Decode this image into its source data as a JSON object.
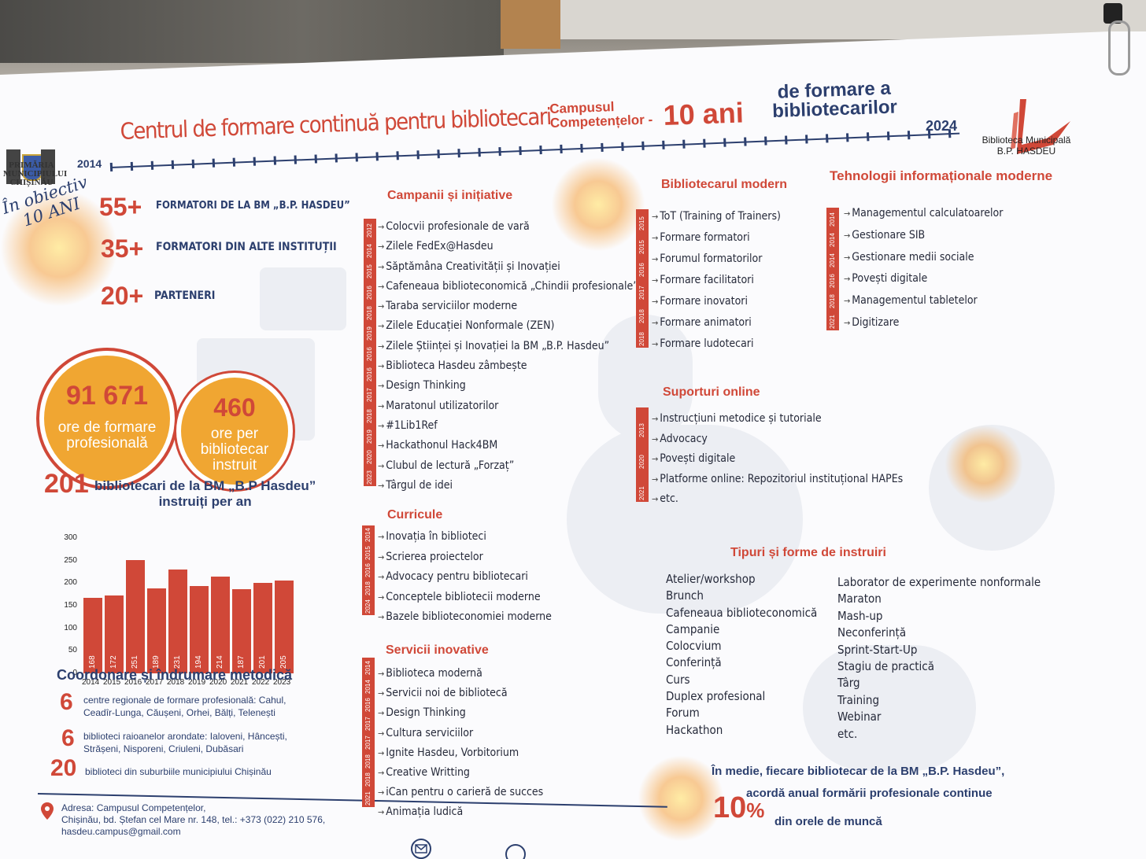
{
  "header": {
    "title": "Centrul de formare continuă pentru bibliotecari",
    "campus_line1": "Campusul",
    "campus_line2": "Competențelor -",
    "ten_years": "10 ani",
    "formare_line1": "de formare a",
    "formare_line2": "bibliotecarilor",
    "year_start": "2014",
    "year_end": "2024"
  },
  "primaria": {
    "line1": "PRIMĂRIA",
    "line2": "MUNICIPIULUI",
    "line3": "CHIȘINĂU"
  },
  "bm_logo": {
    "line1": "Biblioteca Municipală",
    "line2": "B.P. HASDEU"
  },
  "objective": {
    "line1": "În obiectiv",
    "line2": "10 ANI"
  },
  "stats": [
    {
      "value": "55+",
      "label": "FORMATORI DE LA BM „B.P. HASDEU”"
    },
    {
      "value": "35+",
      "label": "FORMATORI DIN ALTE INSTITUȚII"
    },
    {
      "value": "20+",
      "label": "PARTENERI"
    }
  ],
  "circles": {
    "hours": {
      "value": "91 671",
      "label1": "ore de formare",
      "label2": "profesională"
    },
    "per_librarian": {
      "value": "460",
      "label1": "ore per",
      "label2": "bibliotecar",
      "label3": "instruit"
    }
  },
  "trained": {
    "value": "201",
    "label1": "bibliotecari de la BM „B.P Hasdeu”",
    "label2": "instruiți per an"
  },
  "chart_data": {
    "type": "bar",
    "categories": [
      "2014",
      "2015",
      "2016",
      "2017",
      "2018",
      "2019",
      "2020",
      "2021",
      "2022",
      "2023"
    ],
    "values": [
      168,
      172,
      251,
      189,
      231,
      194,
      214,
      187,
      201,
      205
    ],
    "yticks": [
      "300",
      "250",
      "200",
      "150",
      "100",
      "50",
      "0"
    ],
    "ylim": [
      0,
      300
    ]
  },
  "coordination": {
    "title": "Coordonare și îndrumare metodică",
    "items": [
      {
        "num": "6",
        "line1": "centre regionale de formare profesională: Cahul,",
        "line2": "Ceadîr-Lunga, Căușeni, Orhei, Bălți, Telenești"
      },
      {
        "num": "6",
        "line1": "biblioteci raioanelor arondate: Ialoveni, Hâncești,",
        "line2": "Strășeni, Nisporeni, Criuleni, Dubăsari"
      },
      {
        "num": "20",
        "line1": "biblioteci din suburbiile municipiului Chișinău",
        "line2": ""
      }
    ]
  },
  "address": {
    "line1": "Adresa: Campusul Competențelor,",
    "line2": "Chișinău, bd. Ștefan cel Mare nr. 148, tel.: +373 (022) 210 576,",
    "line3": "hasdeu.campus@gmail.com"
  },
  "campanii": {
    "title": "Campanii și inițiative",
    "years": [
      "2012",
      "2014",
      "2015",
      "2016",
      "2018",
      "2019",
      "2016",
      "2016",
      "2017",
      "2018",
      "2019",
      "2020",
      "2023"
    ],
    "items": [
      "Colocvii profesionale de vară",
      "Zilele FedEx@Hasdeu",
      "Săptămâna Creativității și Inovației",
      "Cafeneaua biblioteconomică „Chindii profesionale”",
      "Taraba serviciilor moderne",
      "Zilele Educației Nonformale (ZEN)",
      "Zilele Științei și Inovației la BM „B.P. Hasdeu”",
      "Biblioteca Hasdeu zâmbește",
      "Design Thinking",
      "Maratonul utilizatorilor",
      "#1Lib1Ref",
      "Hackathonul Hack4BM",
      "Clubul de lectură „Forzaț”",
      "Târgul de idei"
    ]
  },
  "curricule": {
    "title": "Curricule",
    "years": [
      "2014",
      "2015",
      "2016",
      "2018",
      "2024"
    ],
    "items": [
      "Inovația în biblioteci",
      "Scrierea proiectelor",
      "Advocacy pentru bibliotecari",
      "Conceptele bibliotecii moderne",
      "Bazele biblioteconomiei moderne"
    ]
  },
  "servicii": {
    "title": "Servicii inovative",
    "years": [
      "2014",
      "2014",
      "2016",
      "2017",
      "2017",
      "2018",
      "2018",
      "2021"
    ],
    "items": [
      "Biblioteca modernă",
      "Servicii noi de bibliotecă",
      "Design Thinking",
      "Cultura serviciilor",
      "Ignite Hasdeu, Vorbitorium",
      "Creative Writting",
      "iCan pentru o carieră de succes",
      "Animația ludică"
    ]
  },
  "bibliotecarul": {
    "title": "Bibliotecarul modern",
    "years": [
      "2015",
      "2015",
      "2016",
      "2017",
      "2018",
      "2018"
    ],
    "items": [
      "ToT (Training of Trainers)",
      "Formare formatori",
      "Forumul formatorilor",
      "Formare facilitatori",
      "Formare inovatori",
      "Formare animatori",
      "Formare ludotecari"
    ]
  },
  "tehnologii": {
    "title": "Tehnologii informaționale moderne",
    "years": [
      "2014",
      "2014",
      "2014",
      "2016",
      "2018",
      "2021"
    ],
    "items": [
      "Managementul calculatoarelor",
      "Gestionare SIB",
      "Gestionare medii sociale",
      "Povești digitale",
      "Managementul tabletelor",
      "Digitizare"
    ]
  },
  "suporturi": {
    "title": "Suporturi online",
    "years": [
      "2013",
      "2020",
      "2021"
    ],
    "items": [
      "Instrucțiuni metodice și tutoriale",
      "Advocacy",
      "Povești digitale",
      "Platforme online: Repozitoriul instituțional HAPEs",
      "etc."
    ]
  },
  "tipuri": {
    "title": "Tipuri și forme de instruiri",
    "col1": [
      "Atelier/workshop",
      "Brunch",
      "Cafeneaua biblioteconomică",
      "Campanie",
      "Colocvium",
      "Conferință",
      "Curs",
      "Duplex profesional",
      "Forum",
      "Hackathon"
    ],
    "col2": [
      "Laborator de experimente nonformale",
      "Maraton",
      "Mash-up",
      "Neconferință",
      "Sprint-Start-Up",
      "Stagiu de practică",
      "Târg",
      "Training",
      "Webinar",
      "etc."
    ]
  },
  "footer_note": {
    "line1": "În medie, fiecare bibliotecar de la BM „B.P. Hasdeu”,",
    "line2": "acordă anual formării profesionale continue",
    "percent": "10",
    "pct_sign": "%",
    "line3": "din orele de muncă"
  }
}
